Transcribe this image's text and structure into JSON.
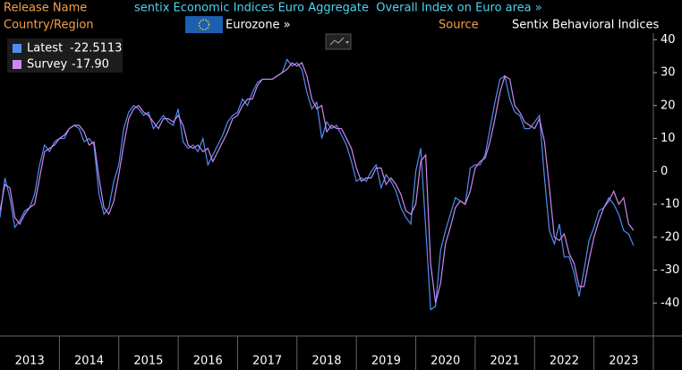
{
  "chart_data": {
    "type": "line",
    "header": {
      "release_name_label": "Release Name",
      "title": "sentix Economic Indices Euro Aggregate  Overall Index on Euro area »",
      "country_label": "Country/Region",
      "country": "Eurozone »",
      "source_label": "Source",
      "source": "Sentix Behavioral Indices"
    },
    "x": [
      2013,
      2013.083,
      2013.167,
      2013.25,
      2013.333,
      2013.417,
      2013.5,
      2013.583,
      2013.667,
      2013.75,
      2013.833,
      2013.917,
      2014,
      2014.083,
      2014.167,
      2014.25,
      2014.333,
      2014.417,
      2014.5,
      2014.583,
      2014.667,
      2014.75,
      2014.833,
      2014.917,
      2015,
      2015.083,
      2015.167,
      2015.25,
      2015.333,
      2015.417,
      2015.5,
      2015.583,
      2015.667,
      2015.75,
      2015.833,
      2015.917,
      2016,
      2016.083,
      2016.167,
      2016.25,
      2016.333,
      2016.417,
      2016.5,
      2016.583,
      2016.667,
      2016.75,
      2016.833,
      2016.917,
      2017,
      2017.083,
      2017.167,
      2017.25,
      2017.333,
      2017.417,
      2017.5,
      2017.583,
      2017.667,
      2017.75,
      2017.833,
      2017.917,
      2018,
      2018.083,
      2018.167,
      2018.25,
      2018.333,
      2018.417,
      2018.5,
      2018.583,
      2018.667,
      2018.75,
      2018.833,
      2018.917,
      2019,
      2019.083,
      2019.167,
      2019.25,
      2019.333,
      2019.417,
      2019.5,
      2019.583,
      2019.667,
      2019.75,
      2019.833,
      2019.917,
      2020,
      2020.083,
      2020.167,
      2020.25,
      2020.333,
      2020.417,
      2020.5,
      2020.583,
      2020.667,
      2020.75,
      2020.833,
      2020.917,
      2021,
      2021.083,
      2021.167,
      2021.25,
      2021.333,
      2021.417,
      2021.5,
      2021.583,
      2021.667,
      2021.75,
      2021.833,
      2021.917,
      2022,
      2022.083,
      2022.167,
      2022.25,
      2022.333,
      2022.417,
      2022.5,
      2022.583,
      2022.667,
      2022.75,
      2022.833,
      2022.917,
      2023,
      2023.083,
      2023.167,
      2023.25,
      2023.333,
      2023.417,
      2023.5,
      2023.583,
      2023.667
    ],
    "series": [
      {
        "name": "Latest",
        "color": "#4f8df5",
        "values": [
          -14,
          -2,
          -8,
          -17,
          -15,
          -12,
          -11,
          -7,
          2,
          8,
          6,
          9,
          10,
          10,
          13,
          14,
          13,
          9,
          10,
          8,
          -7,
          -13,
          -11,
          -3,
          2,
          13,
          18,
          20,
          19,
          17,
          18,
          13,
          15,
          17,
          15,
          14,
          19,
          9,
          7,
          8,
          6,
          10,
          2,
          5,
          8,
          11,
          15,
          17,
          18,
          22,
          20,
          24,
          27,
          28,
          28,
          28,
          29,
          30,
          34,
          32,
          33,
          31,
          24,
          19,
          21,
          10,
          15,
          13,
          14,
          11,
          8,
          3,
          -3,
          -2,
          -3,
          0,
          2,
          -5,
          -1,
          -3,
          -6,
          -11,
          -14,
          -16,
          0,
          7,
          -17,
          -42,
          -41,
          -24,
          -18,
          -13,
          -8,
          -9,
          -10,
          1,
          2,
          2,
          5,
          13,
          21,
          28,
          29,
          22,
          18,
          17,
          13,
          13,
          15,
          17,
          -2,
          -18,
          -22,
          -16,
          -26,
          -26,
          -31,
          -38,
          -30,
          -21,
          -17,
          -12,
          -11,
          -8,
          -10,
          -13,
          -18,
          -19,
          -22.5113
        ]
      },
      {
        "name": "Survey",
        "color": "#cc88ee",
        "last_value_label": "-17.90",
        "values": [
          -12,
          -4,
          -5,
          -14,
          -16,
          -13,
          -11,
          -10,
          -2,
          6,
          7,
          8,
          10,
          11,
          13,
          14,
          14,
          12,
          8,
          9,
          -2,
          -11,
          -13,
          -9,
          -1,
          8,
          16,
          19,
          20,
          18,
          17,
          15,
          13,
          16,
          16,
          15,
          17,
          14,
          8,
          7,
          8,
          6,
          7,
          3,
          6,
          9,
          12,
          16,
          17,
          20,
          22,
          22,
          26,
          28,
          28,
          28,
          29,
          30,
          31,
          33,
          32,
          33,
          29,
          22,
          19,
          20,
          12,
          14,
          13,
          13,
          10,
          7,
          1,
          -3,
          -2,
          -2,
          1,
          1,
          -4,
          -2,
          -4,
          -7,
          -12,
          -13,
          -10,
          3,
          5,
          -28,
          -40,
          -34,
          -22,
          -17,
          -11,
          -9,
          -10,
          -6,
          1,
          3,
          4,
          9,
          16,
          24,
          29,
          28,
          20,
          18,
          15,
          14,
          13,
          16,
          9,
          -5,
          -20,
          -21,
          -19,
          -25,
          -28,
          -35,
          -35,
          -27,
          -20,
          -15,
          -11,
          -9,
          -6,
          -10,
          -8,
          -16,
          -17.9
        ]
      }
    ],
    "xlim": [
      2013,
      2024
    ],
    "xticks": [
      {
        "value": 2013.5,
        "label": "2013"
      },
      {
        "value": 2014.5,
        "label": "2014"
      },
      {
        "value": 2015.5,
        "label": "2015"
      },
      {
        "value": 2016.5,
        "label": "2016"
      },
      {
        "value": 2017.5,
        "label": "2017"
      },
      {
        "value": 2018.5,
        "label": "2018"
      },
      {
        "value": 2019.5,
        "label": "2019"
      },
      {
        "value": 2020.5,
        "label": "2020"
      },
      {
        "value": 2021.5,
        "label": "2021"
      },
      {
        "value": 2022.5,
        "label": "2022"
      },
      {
        "value": 2023.5,
        "label": "2023"
      }
    ],
    "ylim": [
      -50,
      42
    ],
    "yticks": [
      -40,
      -30,
      -20,
      -10,
      0,
      10,
      20,
      30,
      40
    ],
    "grid": false,
    "legend": "upper left"
  }
}
